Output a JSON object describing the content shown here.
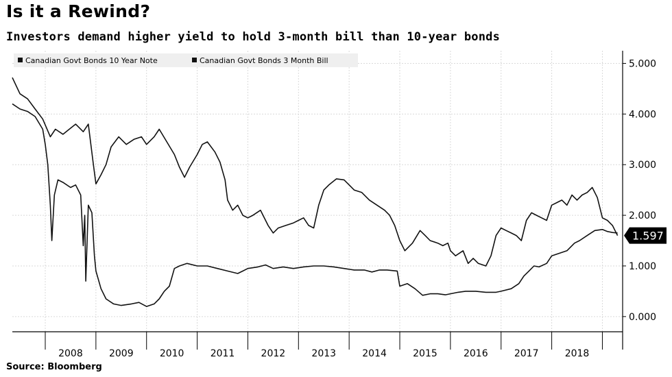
{
  "header": {
    "title": "Is it a Rewind?",
    "subtitle": "Investors demand higher yield to hold 3-month bill than 10-year bonds"
  },
  "footer": {
    "source": "Source: Bloomberg"
  },
  "colors": {
    "line": "#111111",
    "grid": "#d9d9d9",
    "legend_bg": "#efefef",
    "badge_bg": "#000000",
    "badge_text": "#ffffff"
  },
  "chart_data": {
    "type": "line",
    "x_axis": {
      "start": 2007.35,
      "end": 2019.4,
      "tick_labels": [
        "2008",
        "2009",
        "2010",
        "2011",
        "2012",
        "2013",
        "2014",
        "2015",
        "2016",
        "2017",
        "2018"
      ]
    },
    "y_axis": {
      "range": [
        -0.3,
        5.25
      ],
      "position": "right",
      "ticks": [
        0,
        1,
        2,
        3,
        4,
        5
      ],
      "tick_labels": [
        "0.000",
        "1.000",
        "2.000",
        "3.000",
        "4.000",
        "5.000"
      ]
    },
    "grid": true,
    "legend": {
      "placement": "top-left"
    },
    "last_value_label": "1.597",
    "series": [
      {
        "name": "Canadian Govt Bonds 10 Year Note",
        "points": [
          [
            2007.35,
            4.72
          ],
          [
            2007.5,
            4.4
          ],
          [
            2007.65,
            4.3
          ],
          [
            2007.8,
            4.1
          ],
          [
            2007.95,
            3.9
          ],
          [
            2008.1,
            3.55
          ],
          [
            2008.2,
            3.7
          ],
          [
            2008.35,
            3.6
          ],
          [
            2008.5,
            3.72
          ],
          [
            2008.6,
            3.8
          ],
          [
            2008.75,
            3.65
          ],
          [
            2008.85,
            3.8
          ],
          [
            2008.95,
            3.0
          ],
          [
            2009.0,
            2.62
          ],
          [
            2009.1,
            2.8
          ],
          [
            2009.2,
            3.0
          ],
          [
            2009.3,
            3.35
          ],
          [
            2009.45,
            3.55
          ],
          [
            2009.6,
            3.4
          ],
          [
            2009.75,
            3.5
          ],
          [
            2009.9,
            3.55
          ],
          [
            2010.0,
            3.4
          ],
          [
            2010.15,
            3.55
          ],
          [
            2010.25,
            3.7
          ],
          [
            2010.4,
            3.45
          ],
          [
            2010.55,
            3.2
          ],
          [
            2010.65,
            2.95
          ],
          [
            2010.75,
            2.75
          ],
          [
            2010.85,
            2.95
          ],
          [
            2011.0,
            3.2
          ],
          [
            2011.1,
            3.4
          ],
          [
            2011.2,
            3.45
          ],
          [
            2011.35,
            3.25
          ],
          [
            2011.45,
            3.05
          ],
          [
            2011.55,
            2.7
          ],
          [
            2011.6,
            2.3
          ],
          [
            2011.7,
            2.1
          ],
          [
            2011.8,
            2.2
          ],
          [
            2011.9,
            2.0
          ],
          [
            2012.0,
            1.95
          ],
          [
            2012.1,
            2.0
          ],
          [
            2012.25,
            2.1
          ],
          [
            2012.4,
            1.8
          ],
          [
            2012.5,
            1.65
          ],
          [
            2012.6,
            1.75
          ],
          [
            2012.75,
            1.8
          ],
          [
            2012.9,
            1.85
          ],
          [
            2013.0,
            1.9
          ],
          [
            2013.1,
            1.95
          ],
          [
            2013.2,
            1.8
          ],
          [
            2013.3,
            1.75
          ],
          [
            2013.4,
            2.2
          ],
          [
            2013.5,
            2.5
          ],
          [
            2013.6,
            2.6
          ],
          [
            2013.75,
            2.72
          ],
          [
            2013.9,
            2.7
          ],
          [
            2014.0,
            2.6
          ],
          [
            2014.1,
            2.5
          ],
          [
            2014.25,
            2.45
          ],
          [
            2014.4,
            2.3
          ],
          [
            2014.55,
            2.2
          ],
          [
            2014.7,
            2.1
          ],
          [
            2014.8,
            2.0
          ],
          [
            2014.9,
            1.8
          ],
          [
            2015.0,
            1.5
          ],
          [
            2015.1,
            1.3
          ],
          [
            2015.25,
            1.45
          ],
          [
            2015.4,
            1.7
          ],
          [
            2015.5,
            1.6
          ],
          [
            2015.6,
            1.5
          ],
          [
            2015.75,
            1.45
          ],
          [
            2015.85,
            1.4
          ],
          [
            2015.95,
            1.45
          ],
          [
            2016.0,
            1.3
          ],
          [
            2016.1,
            1.2
          ],
          [
            2016.25,
            1.3
          ],
          [
            2016.35,
            1.05
          ],
          [
            2016.45,
            1.15
          ],
          [
            2016.55,
            1.05
          ],
          [
            2016.7,
            1.0
          ],
          [
            2016.8,
            1.2
          ],
          [
            2016.9,
            1.6
          ],
          [
            2017.0,
            1.75
          ],
          [
            2017.1,
            1.7
          ],
          [
            2017.2,
            1.65
          ],
          [
            2017.3,
            1.6
          ],
          [
            2017.4,
            1.5
          ],
          [
            2017.5,
            1.9
          ],
          [
            2017.6,
            2.05
          ],
          [
            2017.7,
            2.0
          ],
          [
            2017.8,
            1.95
          ],
          [
            2017.9,
            1.9
          ],
          [
            2018.0,
            2.2
          ],
          [
            2018.1,
            2.25
          ],
          [
            2018.2,
            2.3
          ],
          [
            2018.3,
            2.2
          ],
          [
            2018.4,
            2.4
          ],
          [
            2018.5,
            2.3
          ],
          [
            2018.6,
            2.4
          ],
          [
            2018.7,
            2.45
          ],
          [
            2018.8,
            2.55
          ],
          [
            2018.9,
            2.35
          ],
          [
            2019.0,
            1.95
          ],
          [
            2019.1,
            1.9
          ],
          [
            2019.2,
            1.8
          ],
          [
            2019.25,
            1.7
          ],
          [
            2019.3,
            1.6
          ]
        ]
      },
      {
        "name": "Canadian Govt Bonds 3 Month Bill",
        "points": [
          [
            2007.35,
            4.2
          ],
          [
            2007.5,
            4.1
          ],
          [
            2007.65,
            4.05
          ],
          [
            2007.8,
            3.95
          ],
          [
            2007.95,
            3.7
          ],
          [
            2008.0,
            3.4
          ],
          [
            2008.05,
            3.0
          ],
          [
            2008.1,
            2.2
          ],
          [
            2008.13,
            1.5
          ],
          [
            2008.18,
            2.4
          ],
          [
            2008.25,
            2.7
          ],
          [
            2008.35,
            2.65
          ],
          [
            2008.5,
            2.55
          ],
          [
            2008.6,
            2.6
          ],
          [
            2008.7,
            2.4
          ],
          [
            2008.75,
            1.4
          ],
          [
            2008.78,
            2.0
          ],
          [
            2008.8,
            0.7
          ],
          [
            2008.85,
            2.2
          ],
          [
            2008.92,
            2.05
          ],
          [
            2008.97,
            1.2
          ],
          [
            2009.0,
            0.9
          ],
          [
            2009.1,
            0.55
          ],
          [
            2009.2,
            0.35
          ],
          [
            2009.35,
            0.25
          ],
          [
            2009.5,
            0.22
          ],
          [
            2009.7,
            0.25
          ],
          [
            2009.85,
            0.28
          ],
          [
            2010.0,
            0.2
          ],
          [
            2010.15,
            0.25
          ],
          [
            2010.25,
            0.35
          ],
          [
            2010.35,
            0.5
          ],
          [
            2010.45,
            0.6
          ],
          [
            2010.55,
            0.95
          ],
          [
            2010.65,
            1.0
          ],
          [
            2010.8,
            1.05
          ],
          [
            2011.0,
            1.0
          ],
          [
            2011.2,
            1.0
          ],
          [
            2011.4,
            0.95
          ],
          [
            2011.6,
            0.9
          ],
          [
            2011.8,
            0.85
          ],
          [
            2011.9,
            0.9
          ],
          [
            2012.0,
            0.95
          ],
          [
            2012.2,
            0.98
          ],
          [
            2012.35,
            1.02
          ],
          [
            2012.5,
            0.95
          ],
          [
            2012.7,
            0.98
          ],
          [
            2012.9,
            0.95
          ],
          [
            2013.1,
            0.98
          ],
          [
            2013.3,
            1.0
          ],
          [
            2013.5,
            1.0
          ],
          [
            2013.7,
            0.98
          ],
          [
            2013.9,
            0.95
          ],
          [
            2014.1,
            0.92
          ],
          [
            2014.3,
            0.92
          ],
          [
            2014.45,
            0.88
          ],
          [
            2014.6,
            0.92
          ],
          [
            2014.75,
            0.92
          ],
          [
            2014.95,
            0.9
          ],
          [
            2015.0,
            0.6
          ],
          [
            2015.15,
            0.65
          ],
          [
            2015.3,
            0.55
          ],
          [
            2015.45,
            0.42
          ],
          [
            2015.6,
            0.45
          ],
          [
            2015.75,
            0.45
          ],
          [
            2015.9,
            0.43
          ],
          [
            2016.0,
            0.45
          ],
          [
            2016.15,
            0.48
          ],
          [
            2016.3,
            0.5
          ],
          [
            2016.5,
            0.5
          ],
          [
            2016.7,
            0.48
          ],
          [
            2016.9,
            0.48
          ],
          [
            2017.0,
            0.5
          ],
          [
            2017.2,
            0.55
          ],
          [
            2017.35,
            0.65
          ],
          [
            2017.45,
            0.8
          ],
          [
            2017.55,
            0.9
          ],
          [
            2017.65,
            1.0
          ],
          [
            2017.75,
            0.98
          ],
          [
            2017.9,
            1.05
          ],
          [
            2018.0,
            1.2
          ],
          [
            2018.15,
            1.25
          ],
          [
            2018.3,
            1.3
          ],
          [
            2018.45,
            1.45
          ],
          [
            2018.55,
            1.5
          ],
          [
            2018.7,
            1.6
          ],
          [
            2018.85,
            1.7
          ],
          [
            2019.0,
            1.72
          ],
          [
            2019.1,
            1.68
          ],
          [
            2019.2,
            1.66
          ],
          [
            2019.3,
            1.65
          ]
        ]
      }
    ]
  }
}
